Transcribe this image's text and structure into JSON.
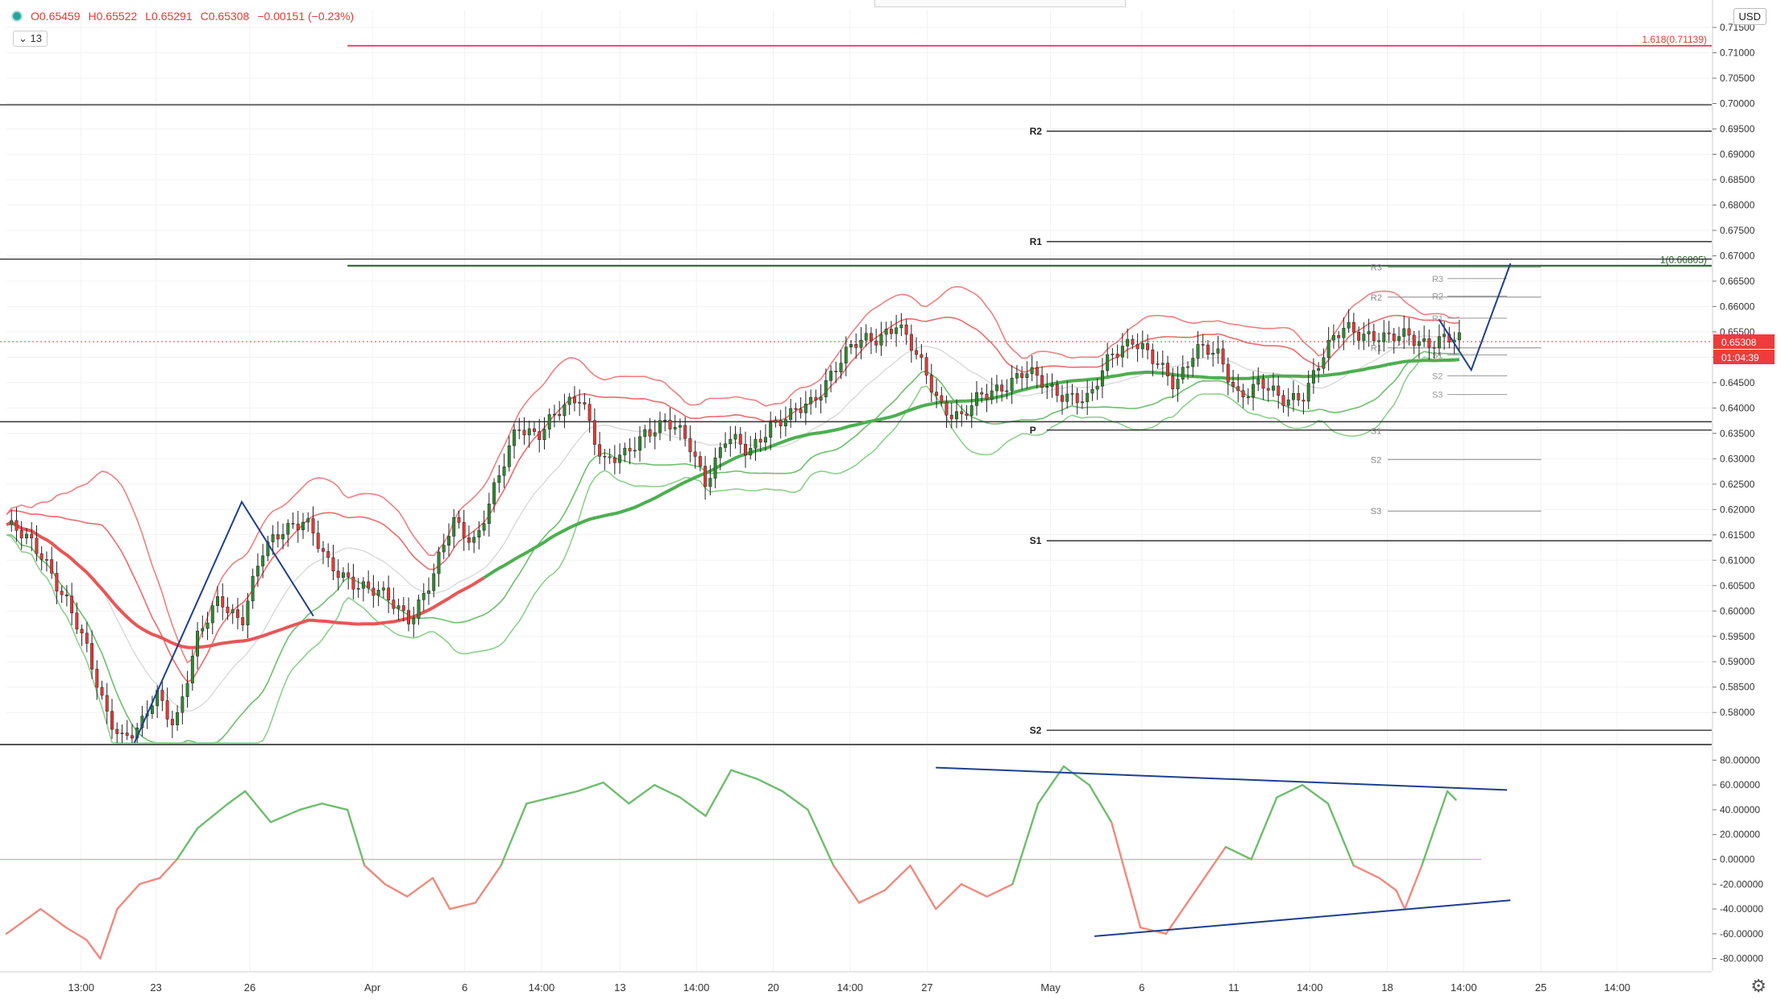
{
  "header": {
    "ohlc": {
      "o": "O0.65459",
      "h": "H0.65522",
      "l": "L0.65291",
      "c": "C0.65308",
      "chg": "−0.00151 (−0.23%)"
    },
    "indicator_count": "13",
    "currency": "USD"
  },
  "price_axis": {
    "min": 0.574,
    "max": 0.7185,
    "labels": [
      "0.71500",
      "0.71000",
      "0.70500",
      "0.70000",
      "0.69500",
      "0.69000",
      "0.68500",
      "0.68000",
      "0.67500",
      "0.67000",
      "0.66500",
      "0.66000",
      "0.65500",
      "0.65000",
      "0.64500",
      "0.64000",
      "0.63500",
      "0.63000",
      "0.62500",
      "0.62000",
      "0.61500",
      "0.61000",
      "0.60500",
      "0.60000",
      "0.59500",
      "0.59000",
      "0.58500",
      "0.58000"
    ],
    "current_price": "0.65308",
    "countdown": "01:04:39",
    "current_color": "#ef3b3b"
  },
  "osc_axis": {
    "min": -90,
    "max": 90,
    "labels": [
      "80.00000",
      "60.00000",
      "40.00000",
      "20.00000",
      "0.00000",
      "-20.00000",
      "-40.00000",
      "-60.00000",
      "-80.00000"
    ]
  },
  "time_axis": {
    "labels": [
      {
        "t": "13:00",
        "x": 0.0438
      },
      {
        "t": "23",
        "x": 0.0877
      },
      {
        "t": "26",
        "x": 0.1427
      },
      {
        "t": "Apr",
        "x": 0.2146
      },
      {
        "t": "6",
        "x": 0.2687
      },
      {
        "t": "14:00",
        "x": 0.3138
      },
      {
        "t": "13",
        "x": 0.3598
      },
      {
        "t": "14:00",
        "x": 0.4046
      },
      {
        "t": "20",
        "x": 0.4497
      },
      {
        "t": "14:00",
        "x": 0.4947
      },
      {
        "t": "27",
        "x": 0.5399
      },
      {
        "t": "May",
        "x": 0.6123
      },
      {
        "t": "6",
        "x": 0.6658
      },
      {
        "t": "11",
        "x": 0.7197
      },
      {
        "t": "14:00",
        "x": 0.7643
      },
      {
        "t": "18",
        "x": 0.8098
      },
      {
        "t": "14:00",
        "x": 0.8546
      },
      {
        "t": "25",
        "x": 0.8998
      },
      {
        "t": "14:00",
        "x": 0.9446
      }
    ]
  },
  "levels": {
    "fib_1618": {
      "price": 0.71139,
      "label": "1.618(0.71139)",
      "color": "#e53935"
    },
    "fib_1": {
      "price": 0.66805,
      "label": "1(0.66805)",
      "color": "#1b5e20"
    },
    "horizontals": [
      0.69975,
      0.66935,
      0.6373
    ],
    "pivots_weekly": [
      {
        "name": "R2",
        "price": 0.69455
      },
      {
        "name": "R1",
        "price": 0.6728
      },
      {
        "name": "P",
        "price": 0.63565
      },
      {
        "name": "S1",
        "price": 0.61385
      },
      {
        "name": "S2",
        "price": 0.5765
      }
    ],
    "pivots_daily": [
      {
        "name": "R3",
        "price": 0.66775
      },
      {
        "name": "R2",
        "price": 0.66185
      },
      {
        "name": "R1",
        "price": 0.65185
      },
      {
        "name": "S1",
        "price": 0.63555
      },
      {
        "name": "S2",
        "price": 0.62985
      },
      {
        "name": "S3",
        "price": 0.6197
      }
    ],
    "pivots_small": [
      {
        "name": "R3",
        "price": 0.6655
      },
      {
        "name": "R2",
        "price": 0.66205
      },
      {
        "name": "R1",
        "price": 0.6577
      },
      {
        "name": "S1",
        "price": 0.65045
      },
      {
        "name": "S2",
        "price": 0.64635
      },
      {
        "name": "S3",
        "price": 0.64265
      }
    ]
  },
  "chart_data": {
    "type": "line",
    "title": "",
    "xlabel": "",
    "ylabel": "",
    "x_range": [
      0,
      1
    ],
    "ylim": [
      0.574,
      0.7185
    ],
    "series": [
      {
        "role": "price",
        "color": "#3a9a3a",
        "x": [
          0.0,
          0.022,
          0.035,
          0.047,
          0.058,
          0.068,
          0.078,
          0.088,
          0.099,
          0.112,
          0.125,
          0.138,
          0.15,
          0.163,
          0.175,
          0.188,
          0.2,
          0.212,
          0.225,
          0.237,
          0.25,
          0.262,
          0.275,
          0.288,
          0.3,
          0.312,
          0.325,
          0.337,
          0.35,
          0.362,
          0.375,
          0.387,
          0.4,
          0.41,
          0.422,
          0.435,
          0.447,
          0.46,
          0.472,
          0.485,
          0.497,
          0.51,
          0.522,
          0.535,
          0.548,
          0.56,
          0.572,
          0.585,
          0.597,
          0.61,
          0.622,
          0.635,
          0.648,
          0.66,
          0.672,
          0.685,
          0.697,
          0.71,
          0.722,
          0.735,
          0.747,
          0.76,
          0.772,
          0.785,
          0.797,
          0.81,
          0.822,
          0.834,
          0.846,
          0.852
        ],
        "values": [
          0.617,
          0.611,
          0.602,
          0.592,
          0.581,
          0.575,
          0.576,
          0.584,
          0.578,
          0.594,
          0.603,
          0.598,
          0.611,
          0.617,
          0.618,
          0.609,
          0.607,
          0.604,
          0.602,
          0.599,
          0.606,
          0.618,
          0.614,
          0.625,
          0.637,
          0.635,
          0.639,
          0.643,
          0.629,
          0.63,
          0.636,
          0.637,
          0.633,
          0.626,
          0.634,
          0.631,
          0.637,
          0.638,
          0.641,
          0.648,
          0.652,
          0.654,
          0.657,
          0.649,
          0.641,
          0.638,
          0.642,
          0.645,
          0.647,
          0.644,
          0.643,
          0.641,
          0.651,
          0.654,
          0.649,
          0.645,
          0.652,
          0.65,
          0.643,
          0.645,
          0.641,
          0.643,
          0.65,
          0.656,
          0.655,
          0.653,
          0.6545,
          0.6531,
          0.6531,
          0.6531
        ]
      },
      {
        "role": "projection",
        "color": "#1e3f8f",
        "x": [
          0.84,
          0.859,
          0.882
        ],
        "values": [
          0.6575,
          0.6475,
          0.6685
        ]
      },
      {
        "role": "oscillator",
        "color": "#6ebd6e",
        "x": [
          0.0,
          0.02,
          0.035,
          0.047,
          0.055,
          0.065,
          0.078,
          0.09,
          0.1,
          0.112,
          0.13,
          0.14,
          0.155,
          0.172,
          0.185,
          0.2,
          0.21,
          0.222,
          0.235,
          0.25,
          0.26,
          0.275,
          0.29,
          0.305,
          0.32,
          0.335,
          0.35,
          0.365,
          0.38,
          0.395,
          0.41,
          0.425,
          0.44,
          0.455,
          0.47,
          0.485,
          0.5,
          0.515,
          0.53,
          0.545,
          0.56,
          0.575,
          0.59,
          0.605,
          0.62,
          0.635,
          0.648,
          0.665,
          0.68,
          0.7,
          0.715,
          0.73,
          0.745,
          0.76,
          0.775,
          0.79,
          0.805,
          0.815,
          0.82,
          0.83,
          0.845,
          0.85
        ],
        "values": [
          -60,
          -40,
          -55,
          -65,
          -80,
          -40,
          -20,
          -15,
          0,
          25,
          45,
          55,
          30,
          40,
          45,
          40,
          -5,
          -20,
          -30,
          -15,
          -40,
          -35,
          -5,
          45,
          50,
          55,
          62,
          45,
          60,
          50,
          35,
          72,
          65,
          55,
          40,
          -5,
          -35,
          -25,
          -5,
          -40,
          -20,
          -30,
          -20,
          45,
          75,
          60,
          30,
          -55,
          -60,
          -20,
          10,
          0,
          50,
          60,
          45,
          -5,
          -15,
          -25,
          -40,
          -5,
          55,
          48
        ]
      }
    ]
  }
}
